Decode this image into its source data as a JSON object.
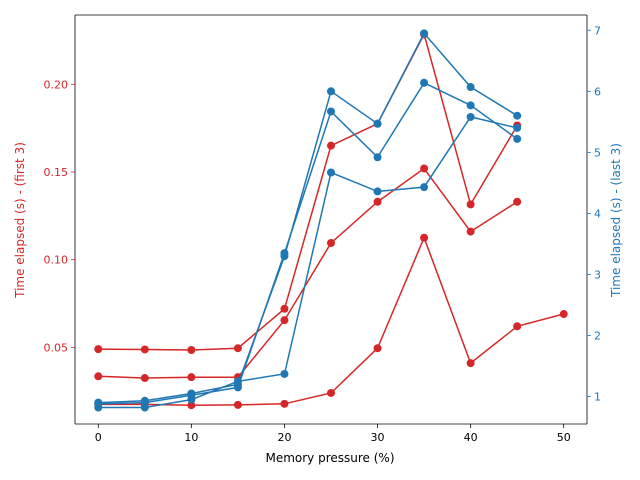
{
  "chart_data": {
    "type": "line",
    "title": "",
    "xlabel": "Memory pressure (%)",
    "xlim": [
      -2.5,
      52.5
    ],
    "xticks": [
      0,
      10,
      20,
      30,
      40,
      50
    ],
    "left_axis": {
      "label": "Time elapsed (s) - (first 3)",
      "color": "#d62728",
      "ylim": [
        0.0063,
        0.2395
      ],
      "ticks": [
        0.05,
        0.1,
        0.15,
        0.2
      ],
      "tick_labels": [
        "0.05",
        "0.10",
        "0.15",
        "0.20"
      ]
    },
    "right_axis": {
      "label": "Time elapsed (s) - (last 3)",
      "color": "#1f77b4",
      "ylim": [
        0.55,
        7.25
      ],
      "ticks": [
        1,
        2,
        3,
        4,
        5,
        6,
        7
      ],
      "tick_labels": [
        "1",
        "2",
        "3",
        "4",
        "5",
        "6",
        "7"
      ]
    },
    "series": [
      {
        "axis": "left",
        "x": [
          0,
          5,
          10,
          15,
          20,
          25,
          30,
          35,
          40,
          45
        ],
        "y": [
          0.049,
          0.0488,
          0.0485,
          0.0495,
          0.072,
          0.165,
          0.1775,
          0.2285,
          0.1315,
          0.1765
        ]
      },
      {
        "axis": "left",
        "x": [
          0,
          5,
          10,
          15,
          20,
          25,
          30,
          35,
          40,
          45
        ],
        "y": [
          0.0335,
          0.0325,
          0.033,
          0.033,
          0.0655,
          0.1095,
          0.133,
          0.152,
          0.116,
          0.133
        ]
      },
      {
        "axis": "left",
        "x": [
          0,
          5,
          10,
          15,
          20,
          25,
          30,
          35,
          40,
          45,
          50
        ],
        "y": [
          0.0175,
          0.0175,
          0.017,
          0.0172,
          0.0178,
          0.024,
          0.0495,
          0.1125,
          0.041,
          0.062,
          0.069
        ]
      },
      {
        "axis": "right",
        "x": [
          0,
          5,
          10,
          15,
          20,
          25,
          30,
          35,
          40,
          45
        ],
        "y": [
          0.9,
          0.93,
          1.05,
          1.2,
          3.3,
          6.0,
          5.47,
          6.95,
          6.07,
          5.6
        ]
      },
      {
        "axis": "right",
        "x": [
          0,
          5,
          10,
          15,
          20,
          25,
          30,
          35,
          40,
          45
        ],
        "y": [
          0.88,
          0.9,
          1.02,
          1.15,
          3.35,
          5.67,
          4.92,
          6.14,
          5.77,
          5.22
        ]
      },
      {
        "axis": "right",
        "x": [
          0,
          5,
          10,
          15,
          20,
          25,
          30,
          35,
          40,
          45
        ],
        "y": [
          0.82,
          0.82,
          0.95,
          1.25,
          1.37,
          4.67,
          4.36,
          4.43,
          5.58,
          5.4
        ]
      }
    ]
  }
}
